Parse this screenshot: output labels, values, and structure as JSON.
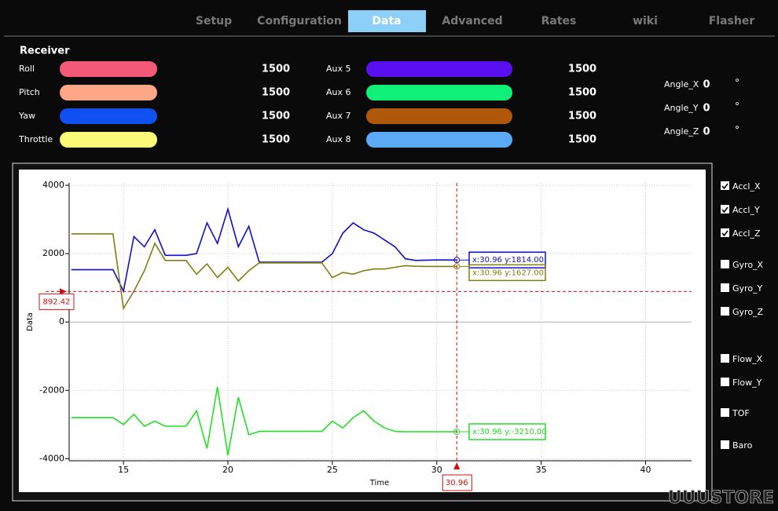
{
  "tabs": [
    "Setup",
    "Configuration",
    "Data",
    "Advanced",
    "Rates",
    "wiki",
    "Flasher"
  ],
  "active_tab": 2,
  "receiver": {
    "title": "Receiver",
    "channels": [
      {
        "name": "Roll",
        "color": "#f45a78",
        "value": 1500
      },
      {
        "name": "Pitch",
        "color": "#fca785",
        "value": 1500
      },
      {
        "name": "Yaw",
        "color": "#1150f0",
        "value": 1500
      },
      {
        "name": "Throttle",
        "color": "#fafa78",
        "value": 1500
      },
      {
        "name": "Aux 5",
        "color": "#5a0ff0",
        "value": 1500
      },
      {
        "name": "Aux 6",
        "color": "#0ff078",
        "value": 1500
      },
      {
        "name": "Aux 7",
        "color": "#b0580a",
        "value": 1500
      },
      {
        "name": "Aux 8",
        "color": "#5aaaf5",
        "value": 1500
      }
    ]
  },
  "angles": [
    {
      "name": "Angle_X",
      "value": 0,
      "unit": "°"
    },
    {
      "name": "Angle_Y",
      "value": 0,
      "unit": "°"
    },
    {
      "name": "Angle_Z",
      "value": 0,
      "unit": "°"
    }
  ],
  "chart": {
    "type": "line",
    "x_label": "Time",
    "y_label": "Data",
    "xlim": [
      12.4,
      42.2
    ],
    "ylim": [
      -4060,
      4070
    ],
    "xticks": [
      15,
      20,
      25,
      30,
      35,
      40
    ],
    "yticks": [
      -4000,
      -2000,
      0,
      2000,
      4000
    ],
    "grid": true,
    "x": [
      12.5,
      13,
      13.5,
      14,
      14.5,
      15,
      15.5,
      16,
      16.5,
      17,
      17.5,
      18,
      18.5,
      19,
      19.5,
      20,
      20.5,
      21,
      21.5,
      22,
      22.5,
      23,
      23.5,
      24,
      24.5,
      25,
      25.5,
      26,
      26.5,
      27,
      27.5,
      28,
      28.5,
      29,
      29.5,
      30,
      30.5,
      31
    ],
    "series": [
      {
        "color": "#1010c8",
        "values": [
          1530,
          1530,
          1530,
          1530,
          1530,
          900,
          2500,
          2200,
          2700,
          1950,
          1950,
          1950,
          2000,
          2900,
          2300,
          3300,
          2200,
          2800,
          1750,
          1750,
          1750,
          1750,
          1750,
          1750,
          1750,
          2000,
          2600,
          2900,
          2700,
          2600,
          2400,
          2200,
          1850,
          1800,
          1810,
          1814,
          1814,
          1814
        ]
      },
      {
        "color": "#808010",
        "values": [
          2580,
          2580,
          2580,
          2580,
          2580,
          400,
          900,
          1500,
          2300,
          1800,
          1800,
          1800,
          1400,
          1700,
          1300,
          1600,
          1200,
          1500,
          1730,
          1730,
          1730,
          1730,
          1730,
          1730,
          1730,
          1300,
          1450,
          1400,
          1500,
          1550,
          1550,
          1600,
          1650,
          1630,
          1627,
          1627,
          1627,
          1627
        ]
      },
      {
        "color": "#22e022",
        "values": [
          -2800,
          -2800,
          -2800,
          -2800,
          -2800,
          -3000,
          -2700,
          -3050,
          -2900,
          -3050,
          -3050,
          -3050,
          -2600,
          -3700,
          -1900,
          -3900,
          -2200,
          -3300,
          -3200,
          -3200,
          -3200,
          -3200,
          -3200,
          -3200,
          -3200,
          -2900,
          -3100,
          -2800,
          -2600,
          -2900,
          -3100,
          -3200,
          -3210,
          -3210,
          -3210,
          -3210,
          -3210,
          -3210
        ]
      }
    ],
    "x_cursor": {
      "value": 30.96,
      "label": "30.96"
    },
    "y_cursor": {
      "value": 892.42,
      "label": "892.42"
    },
    "tooltips": [
      {
        "series": 0,
        "value": 1814,
        "label": "x:30.96 y:1814.00"
      },
      {
        "series": 1,
        "value": 1627,
        "label": "x:30.96 y:1627.00"
      },
      {
        "series": 2,
        "value": -3210,
        "label": "x:30.96 y:-3210.00"
      }
    ]
  },
  "checkboxes": [
    {
      "label": "Accl_X",
      "checked": true
    },
    {
      "label": "Accl_Y",
      "checked": true
    },
    {
      "label": "Accl_Z",
      "checked": true
    },
    {
      "label": "Gyro_X",
      "checked": false
    },
    {
      "label": "Gyro_Y",
      "checked": false
    },
    {
      "label": "Gyro_Z",
      "checked": false
    },
    {
      "label": "Flow_X",
      "checked": false
    },
    {
      "label": "Flow_Y",
      "checked": false
    },
    {
      "label": "TOF",
      "checked": false
    },
    {
      "label": "Baro",
      "checked": false
    }
  ],
  "watermark": "UUUSTORE"
}
